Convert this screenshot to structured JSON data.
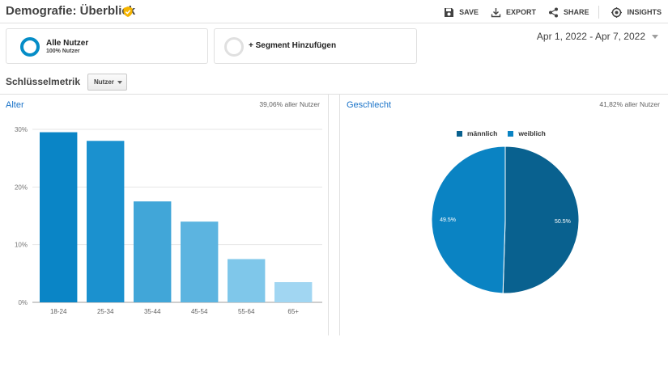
{
  "header": {
    "title": "Demografie: Überblick",
    "actions": [
      {
        "label": "SAVE",
        "icon": "save-icon"
      },
      {
        "label": "EXPORT",
        "icon": "export-icon"
      },
      {
        "label": "SHARE",
        "icon": "share-icon"
      },
      {
        "label": "INSIGHTS",
        "icon": "insights-icon"
      }
    ]
  },
  "segments": [
    {
      "name": "Alle Nutzer",
      "sub": "100% Nutzer"
    },
    {
      "name": "+ Segment Hinzufügen"
    }
  ],
  "date_range": "Apr 1, 2022 - Apr 7, 2022",
  "metric": {
    "label": "Schlüsselmetrik",
    "selected": "Nutzer"
  },
  "panels": {
    "age": {
      "title": "Alter",
      "stat": "39,06% aller Nutzer"
    },
    "gender": {
      "title": "Geschlecht",
      "stat": "41,82% aller Nutzer"
    }
  },
  "colors": {
    "accent": "#058dc7",
    "badge": "#f5b400",
    "bars": [
      "#0a85c6",
      "#1b91cf",
      "#41a6d8",
      "#5cb4e0",
      "#7fc7ea",
      "#a1d6f2"
    ],
    "male": "#09618f",
    "female": "#0a83c3"
  },
  "chart_data": [
    {
      "type": "bar",
      "title": "Alter",
      "categories": [
        "18-24",
        "25-34",
        "35-44",
        "45-54",
        "55-64",
        "65+"
      ],
      "values": [
        29.5,
        28.0,
        17.5,
        14.0,
        7.5,
        3.5
      ],
      "yticks": [
        "0%",
        "10%",
        "20%",
        "30%"
      ],
      "ylim": [
        0,
        30
      ],
      "grid": true
    },
    {
      "type": "pie",
      "title": "Geschlecht",
      "labels": [
        "männlich",
        "weiblich"
      ],
      "values": [
        50.5,
        49.5
      ],
      "value_labels": [
        "50.5%",
        "49.5%"
      ],
      "legend": "top"
    }
  ]
}
